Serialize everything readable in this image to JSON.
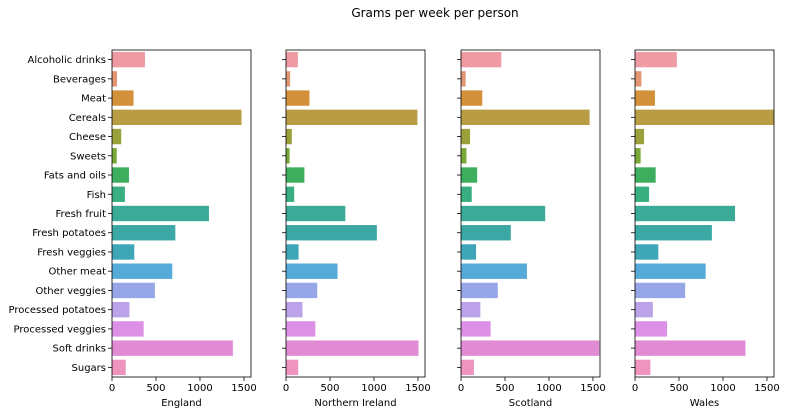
{
  "chart_data": {
    "type": "bar",
    "orientation": "horizontal",
    "title": "Grams per week per person",
    "categories": [
      "Alcoholic drinks",
      "Beverages",
      "Meat",
      "Cereals",
      "Cheese",
      "Sweets",
      "Fats and oils",
      "Fish",
      "Fresh fruit",
      "Fresh potatoes",
      "Fresh veggies",
      "Other meat",
      "Other veggies",
      "Processed potatoes",
      "Processed veggies",
      "Soft drinks",
      "Sugars"
    ],
    "colors": [
      "#EE9BA3",
      "#E29774",
      "#D4913B",
      "#B89D44",
      "#9BA13A",
      "#79A936",
      "#3DAE5E",
      "#39AE80",
      "#3BAA97",
      "#3CA8A6",
      "#3FA6B7",
      "#56AAD7",
      "#97A6E6",
      "#BBA2E9",
      "#DC91E6",
      "#E18BD4",
      "#EE94BF"
    ],
    "x_ticks": [
      0,
      500,
      1000,
      1500
    ],
    "xlim": [
      0,
      1580
    ],
    "grid": false,
    "legend": "none",
    "panels": [
      {
        "xlabel": "England",
        "values": [
          375,
          57,
          245,
          1472,
          105,
          54,
          193,
          147,
          1102,
          720,
          253,
          685,
          488,
          198,
          360,
          1374,
          156
        ]
      },
      {
        "xlabel": "Northern Ireland",
        "values": [
          135,
          47,
          267,
          1494,
          66,
          41,
          209,
          93,
          674,
          1033,
          143,
          586,
          355,
          187,
          334,
          1506,
          139
        ]
      },
      {
        "xlabel": "Scotland",
        "values": [
          458,
          53,
          242,
          1462,
          103,
          62,
          184,
          122,
          957,
          566,
          171,
          750,
          418,
          220,
          337,
          1572,
          147
        ]
      },
      {
        "xlabel": "Wales",
        "values": [
          475,
          73,
          227,
          1582,
          103,
          64,
          235,
          160,
          1137,
          874,
          265,
          803,
          570,
          203,
          365,
          1256,
          175
        ]
      }
    ]
  }
}
